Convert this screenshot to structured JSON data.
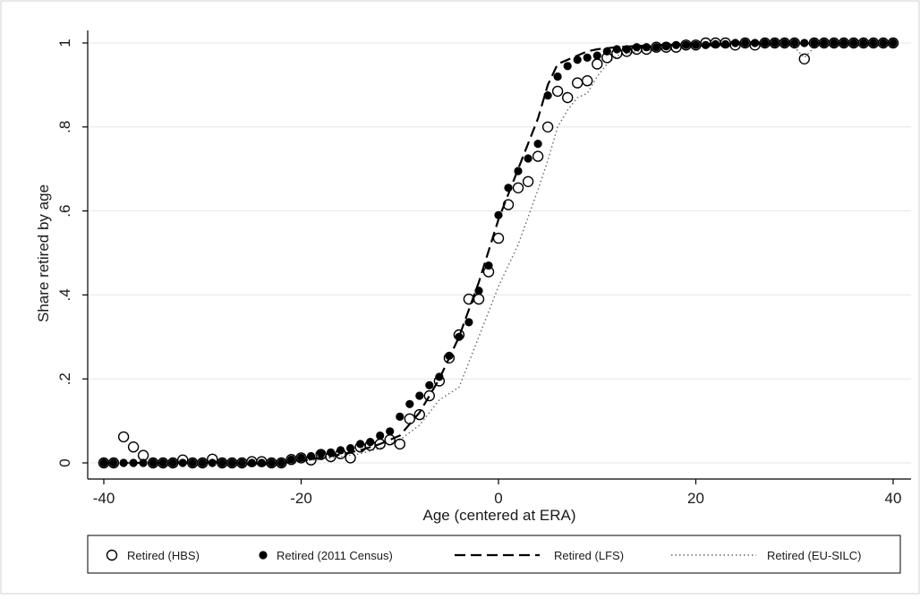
{
  "chart_data": {
    "type": "scatter",
    "title": "",
    "xlabel": "Age (centered at ERA)",
    "ylabel": "Share retired by age",
    "xlim": [
      -41,
      41
    ],
    "ylim": [
      -0.03,
      1.03
    ],
    "xticks": [
      -40,
      -20,
      0,
      20,
      40
    ],
    "xtick_labels": [
      "-40",
      "-20",
      "0",
      "20",
      "40"
    ],
    "yticks": [
      0,
      0.2,
      0.4,
      0.6,
      0.8,
      1
    ],
    "ytick_labels": [
      "0",
      ".2",
      ".4",
      ".6",
      ".8",
      "1"
    ],
    "grid": "horizontal",
    "legend_position": "bottom",
    "colors": {
      "axis": "#000000",
      "grid": "#e6e6e6",
      "series": "#000000",
      "eusilc": "#666666",
      "frame": "#d0d0d0"
    },
    "series": [
      {
        "name": "Retired (HBS)",
        "style": "hollow-circle",
        "x": [
          -40,
          -39,
          -38,
          -37,
          -36,
          -35,
          -34,
          -33,
          -32,
          -31,
          -30,
          -29,
          -28,
          -27,
          -26,
          -25,
          -24,
          -23,
          -22,
          -21,
          -20,
          -19,
          -18,
          -17,
          -16,
          -15,
          -14,
          -13,
          -12,
          -11,
          -10,
          -9,
          -8,
          -7,
          -6,
          -5,
          -4,
          -3,
          -2,
          -1,
          0,
          1,
          2,
          3,
          4,
          5,
          6,
          7,
          8,
          9,
          10,
          11,
          12,
          13,
          14,
          15,
          16,
          17,
          18,
          19,
          20,
          21,
          22,
          23,
          24,
          25,
          26,
          27,
          28,
          29,
          30,
          31,
          32,
          33,
          34,
          35,
          36,
          37,
          38,
          39,
          40
        ],
        "y": [
          0,
          0,
          0.062,
          0.038,
          0.018,
          0,
          0,
          0,
          0.007,
          0,
          0,
          0.009,
          0,
          0,
          0,
          0.003,
          0.003,
          0,
          0,
          0.008,
          0.012,
          0.007,
          0.02,
          0.015,
          0.022,
          0.012,
          0.038,
          0.042,
          0.045,
          0.055,
          0.045,
          0.105,
          0.115,
          0.16,
          0.195,
          0.25,
          0.305,
          0.39,
          0.39,
          0.455,
          0.535,
          0.615,
          0.655,
          0.67,
          0.73,
          0.8,
          0.885,
          0.87,
          0.905,
          0.91,
          0.95,
          0.965,
          0.975,
          0.98,
          0.985,
          0.985,
          0.99,
          0.99,
          0.99,
          0.995,
          0.995,
          1,
          1,
          1,
          0.995,
          1,
          0.995,
          1,
          1,
          1,
          1,
          0.962,
          1,
          1,
          1,
          1,
          1,
          1,
          1,
          1,
          1
        ]
      },
      {
        "name": "Retired (2011 Census)",
        "style": "filled-circle",
        "x": [
          -40,
          -39,
          -38,
          -37,
          -36,
          -35,
          -34,
          -33,
          -32,
          -31,
          -30,
          -29,
          -28,
          -27,
          -26,
          -25,
          -24,
          -23,
          -22,
          -21,
          -20,
          -19,
          -18,
          -17,
          -16,
          -15,
          -14,
          -13,
          -12,
          -11,
          -10,
          -9,
          -8,
          -7,
          -6,
          -5,
          -4,
          -3,
          -2,
          -1,
          0,
          1,
          2,
          3,
          4,
          5,
          6,
          7,
          8,
          9,
          10,
          11,
          12,
          13,
          14,
          15,
          16,
          17,
          18,
          19,
          20,
          21,
          22,
          23,
          24,
          25,
          26,
          27,
          28,
          29,
          30,
          31,
          32,
          33,
          34,
          35,
          36,
          37,
          38,
          39,
          40
        ],
        "y": [
          0,
          0,
          0,
          0,
          0,
          0,
          0,
          0,
          0,
          0,
          0,
          0,
          0,
          0,
          0,
          0,
          0,
          0,
          0,
          0.008,
          0.012,
          0.016,
          0.022,
          0.025,
          0.03,
          0.035,
          0.045,
          0.05,
          0.065,
          0.075,
          0.11,
          0.14,
          0.16,
          0.185,
          0.205,
          0.255,
          0.3,
          0.335,
          0.41,
          0.47,
          0.59,
          0.655,
          0.695,
          0.725,
          0.76,
          0.875,
          0.92,
          0.945,
          0.96,
          0.965,
          0.97,
          0.98,
          0.985,
          0.985,
          0.99,
          0.99,
          0.99,
          0.992,
          0.995,
          0.995,
          0.995,
          0.995,
          0.997,
          0.997,
          1,
          1,
          1,
          1,
          1,
          1,
          1,
          1,
          1,
          1,
          1,
          1,
          1,
          1,
          1,
          1,
          1
        ]
      },
      {
        "name": "Retired (LFS)",
        "style": "dashed-line",
        "x": [
          -40,
          -30,
          -22,
          -20,
          -18,
          -16,
          -14,
          -12,
          -10,
          -8,
          -6,
          -4,
          -2,
          0,
          2,
          4,
          5,
          6,
          7,
          8,
          9,
          10,
          12,
          14,
          16,
          20,
          25,
          30,
          40
        ],
        "y": [
          0,
          0,
          0,
          0.005,
          0.012,
          0.02,
          0.03,
          0.045,
          0.065,
          0.12,
          0.2,
          0.3,
          0.43,
          0.58,
          0.7,
          0.82,
          0.9,
          0.95,
          0.96,
          0.97,
          0.98,
          0.985,
          0.99,
          0.993,
          0.995,
          0.997,
          0.998,
          0.999,
          1
        ]
      },
      {
        "name": "Retired (EU-SILC)",
        "style": "dotted-line",
        "x": [
          -40,
          -30,
          -22,
          -20,
          -18,
          -16,
          -14,
          -12,
          -10,
          -8,
          -6,
          -4,
          -2,
          0,
          2,
          4,
          5,
          6,
          7,
          8,
          9,
          10,
          11,
          12,
          14,
          16,
          18,
          20,
          25,
          29,
          30,
          31,
          32,
          35,
          40
        ],
        "y": [
          0,
          0,
          0,
          0.005,
          0.008,
          0.015,
          0.022,
          0.035,
          0.055,
          0.09,
          0.15,
          0.18,
          0.3,
          0.42,
          0.52,
          0.65,
          0.72,
          0.8,
          0.84,
          0.87,
          0.88,
          0.92,
          0.95,
          0.97,
          0.98,
          0.985,
          0.99,
          0.993,
          0.995,
          0.998,
          0.99,
          0.965,
          0.99,
          1,
          1
        ]
      }
    ]
  }
}
